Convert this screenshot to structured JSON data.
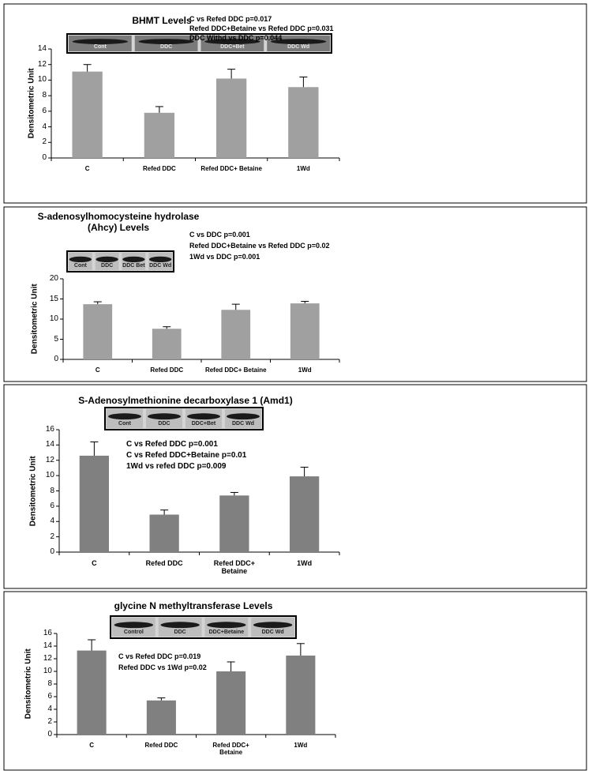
{
  "chart_data": [
    {
      "type": "bar",
      "title": "BHMT Levels",
      "y_label": "Densitometric Unit",
      "categories": [
        "C",
        "Refed DDC",
        "Refed DDC+ Betaine",
        "1Wd"
      ],
      "values": [
        11.1,
        5.8,
        10.2,
        9.1
      ],
      "errors": [
        0.9,
        0.8,
        1.2,
        1.3
      ],
      "color": "#a0a0a0",
      "ylim": [
        0,
        14
      ],
      "yticks": [
        0,
        2,
        4,
        6,
        8,
        10,
        12,
        14
      ],
      "annotations": [
        "C vs Refed DDC p=0.017",
        "Refed DDC+Betaine vs Refed DDC p=0.031",
        "DDC Withd vs DDC p=0.044"
      ],
      "blot_labels": [
        "Cont",
        "DDC",
        "DDC+Bet",
        "DDC Wd"
      ]
    },
    {
      "type": "bar",
      "title": "S-adenosylhomocysteine hydrolase (Ahcy)  Levels",
      "y_label": "Densitometric Unit",
      "categories": [
        "C",
        "Refed DDC",
        "Refed DDC+ Betaine",
        "1Wd"
      ],
      "values": [
        13.7,
        7.6,
        12.3,
        13.9
      ],
      "errors": [
        0.6,
        0.5,
        1.4,
        0.5
      ],
      "color": "#a0a0a0",
      "ylim": [
        0,
        20
      ],
      "yticks": [
        0,
        5,
        10,
        15,
        20
      ],
      "annotations": [
        "C vs DDC p=0.001",
        "Refed DDC+Betaine vs Refed DDC p=0.02",
        "1Wd  vs DDC p=0.001"
      ],
      "blot_labels": [
        "Cont",
        "DDC",
        "DDC Bet",
        "DDC Wd"
      ]
    },
    {
      "type": "bar",
      "title": "S-Adenosylmethionine decarboxylase 1 (Amd1)",
      "y_label": "Densitometric Unit",
      "categories": [
        "C",
        "Refed DDC",
        "Refed DDC+ Betaine",
        "1Wd"
      ],
      "values": [
        12.6,
        4.9,
        7.4,
        9.9
      ],
      "errors": [
        1.8,
        0.6,
        0.4,
        1.2
      ],
      "color": "#808080",
      "ylim": [
        0,
        16
      ],
      "yticks": [
        0,
        2,
        4,
        6,
        8,
        10,
        12,
        14,
        16
      ],
      "annotations": [
        "C vs Refed DDC  p=0.001",
        "C vs Refed DDC+Betaine  p=0.01",
        "1Wd vs refed DDC  p=0.009"
      ],
      "blot_labels": [
        "Cont",
        "DDC",
        "DDC+Bet",
        "DDC Wd"
      ]
    },
    {
      "type": "bar",
      "title": "glycine N methyltransferase  Levels",
      "y_label": "Densitometric Unit",
      "categories": [
        "C",
        "Refed DDC",
        "Refed DDC+ Betaine",
        "1Wd"
      ],
      "values": [
        13.3,
        5.4,
        10.0,
        12.5
      ],
      "errors": [
        1.7,
        0.4,
        1.5,
        1.9
      ],
      "color": "#808080",
      "ylim": [
        0,
        16
      ],
      "yticks": [
        0,
        2,
        4,
        6,
        8,
        10,
        12,
        14,
        16
      ],
      "annotations": [
        "C vs Refed DDC p=0.019",
        "Refed DDC vs 1Wd p=0.02"
      ],
      "blot_labels": [
        "Control",
        "DDC",
        "DDC+Betaine",
        "DDC Wd"
      ]
    }
  ]
}
